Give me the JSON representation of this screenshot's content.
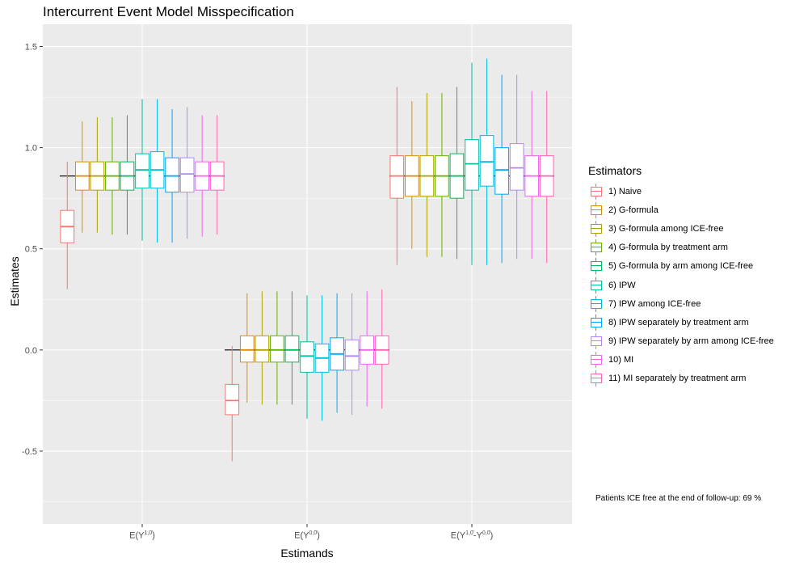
{
  "title": "Intercurrent Event Model Misspecification",
  "footnote": "Patients ICE free at the end of follow-up: 69 %",
  "chart_data": {
    "type": "boxplot",
    "title": "Intercurrent Event Model Misspecification",
    "xlabel": "Estimands",
    "ylabel": "Estimates",
    "ylim": [
      -0.86,
      1.61
    ],
    "yticks": [
      -0.5,
      0.0,
      0.5,
      1.0,
      1.5
    ],
    "ytick_labels": [
      "-0.5",
      "0.0",
      "0.5",
      "1.0",
      "1.5"
    ],
    "categories": [
      {
        "base": "E(Y",
        "sup": "1,0̄",
        "tail": ")"
      },
      {
        "base": "E(Y",
        "sup": "0,0̄",
        "tail": ")"
      },
      {
        "base": "E(Y",
        "sup": "1,0̄",
        "mid": "-Y",
        "sup2": "0,0̄",
        "tail": ")"
      }
    ],
    "truth": [
      0.86,
      0.0,
      0.86
    ],
    "legend_title": "Estimators",
    "estimators": [
      {
        "name": "1) Naive",
        "color": "#F8766D"
      },
      {
        "name": "2) G-formula",
        "color": "#DB8E00"
      },
      {
        "name": "3) G-formula among ICE-free",
        "color": "#AEA200"
      },
      {
        "name": "4) G-formula by treatment arm",
        "color": "#64B200"
      },
      {
        "name": "5) G-formula by arm among ICE-free",
        "color": "#00BD5C"
      },
      {
        "name": "6) IPW",
        "color": "#00C1A7"
      },
      {
        "name": "7) IPW among ICE-free",
        "color": "#00BADE"
      },
      {
        "name": "8) IPW separately by treatment arm",
        "color": "#00A6FF"
      },
      {
        "name": "9) IPW separately by arm among ICE-free",
        "color": "#B385FF"
      },
      {
        "name": "10) MI",
        "color": "#EF67EB"
      },
      {
        "name": "11) MI separately by treatment arm",
        "color": "#FF63B6"
      }
    ],
    "boxes": [
      [
        {
          "min": 0.3,
          "q1": 0.53,
          "med": 0.61,
          "q3": 0.69,
          "max": 0.93
        },
        {
          "min": 0.58,
          "q1": 0.79,
          "med": 0.86,
          "q3": 0.93,
          "max": 1.13
        },
        {
          "min": 0.58,
          "q1": 0.79,
          "med": 0.86,
          "q3": 0.93,
          "max": 1.15
        },
        {
          "min": 0.57,
          "q1": 0.79,
          "med": 0.86,
          "q3": 0.93,
          "max": 1.15
        },
        {
          "min": 0.57,
          "q1": 0.79,
          "med": 0.86,
          "q3": 0.93,
          "max": 1.16
        },
        {
          "min": 0.54,
          "q1": 0.8,
          "med": 0.89,
          "q3": 0.97,
          "max": 1.24
        },
        {
          "min": 0.53,
          "q1": 0.8,
          "med": 0.89,
          "q3": 0.98,
          "max": 1.24
        },
        {
          "min": 0.53,
          "q1": 0.78,
          "med": 0.86,
          "q3": 0.95,
          "max": 1.19
        },
        {
          "min": 0.55,
          "q1": 0.78,
          "med": 0.87,
          "q3": 0.95,
          "max": 1.2
        },
        {
          "min": 0.56,
          "q1": 0.79,
          "med": 0.86,
          "q3": 0.93,
          "max": 1.16
        },
        {
          "min": 0.57,
          "q1": 0.79,
          "med": 0.86,
          "q3": 0.93,
          "max": 1.16
        }
      ],
      [
        {
          "min": -0.55,
          "q1": -0.32,
          "med": -0.25,
          "q3": -0.17,
          "max": 0.02
        },
        {
          "min": -0.26,
          "q1": -0.06,
          "med": 0.0,
          "q3": 0.07,
          "max": 0.28
        },
        {
          "min": -0.27,
          "q1": -0.06,
          "med": 0.0,
          "q3": 0.07,
          "max": 0.29
        },
        {
          "min": -0.27,
          "q1": -0.06,
          "med": 0.0,
          "q3": 0.07,
          "max": 0.29
        },
        {
          "min": -0.27,
          "q1": -0.06,
          "med": 0.0,
          "q3": 0.07,
          "max": 0.29
        },
        {
          "min": -0.34,
          "q1": -0.11,
          "med": -0.03,
          "q3": 0.04,
          "max": 0.27
        },
        {
          "min": -0.35,
          "q1": -0.11,
          "med": -0.04,
          "q3": 0.03,
          "max": 0.27
        },
        {
          "min": -0.31,
          "q1": -0.1,
          "med": -0.02,
          "q3": 0.06,
          "max": 0.28
        },
        {
          "min": -0.32,
          "q1": -0.1,
          "med": -0.03,
          "q3": 0.05,
          "max": 0.28
        },
        {
          "min": -0.28,
          "q1": -0.07,
          "med": 0.0,
          "q3": 0.07,
          "max": 0.29
        },
        {
          "min": -0.29,
          "q1": -0.07,
          "med": 0.0,
          "q3": 0.07,
          "max": 0.3
        }
      ],
      [
        {
          "min": 0.42,
          "q1": 0.75,
          "med": 0.86,
          "q3": 0.96,
          "max": 1.3
        },
        {
          "min": 0.5,
          "q1": 0.76,
          "med": 0.86,
          "q3": 0.96,
          "max": 1.23
        },
        {
          "min": 0.46,
          "q1": 0.76,
          "med": 0.86,
          "q3": 0.96,
          "max": 1.27
        },
        {
          "min": 0.46,
          "q1": 0.76,
          "med": 0.86,
          "q3": 0.96,
          "max": 1.27
        },
        {
          "min": 0.45,
          "q1": 0.75,
          "med": 0.86,
          "q3": 0.97,
          "max": 1.3
        },
        {
          "min": 0.42,
          "q1": 0.79,
          "med": 0.92,
          "q3": 1.04,
          "max": 1.42
        },
        {
          "min": 0.42,
          "q1": 0.81,
          "med": 0.93,
          "q3": 1.06,
          "max": 1.44
        },
        {
          "min": 0.43,
          "q1": 0.77,
          "med": 0.89,
          "q3": 1.0,
          "max": 1.36
        },
        {
          "min": 0.45,
          "q1": 0.79,
          "med": 0.9,
          "q3": 1.02,
          "max": 1.36
        },
        {
          "min": 0.45,
          "q1": 0.76,
          "med": 0.86,
          "q3": 0.96,
          "max": 1.28
        },
        {
          "min": 0.43,
          "q1": 0.76,
          "med": 0.86,
          "q3": 0.96,
          "max": 1.28
        }
      ]
    ]
  }
}
